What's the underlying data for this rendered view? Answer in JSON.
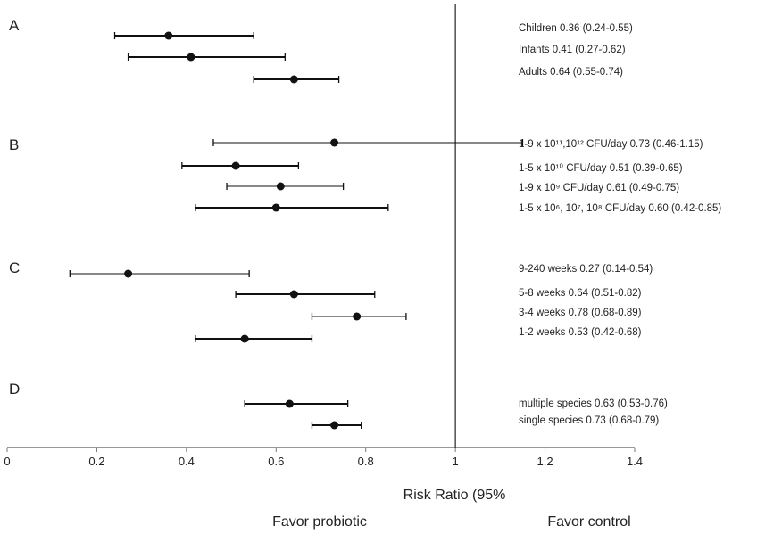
{
  "chart_data": {
    "type": "forest",
    "xlabel": "Risk Ratio (95%",
    "xlim": [
      0,
      1.4
    ],
    "xticks": [
      "0",
      "0.2",
      "0.4",
      "0.6",
      "0.8",
      "1",
      "1.2",
      "1.4"
    ],
    "reference_line": 1,
    "favor_left": "Favor probiotic",
    "favor_right": "Favor control",
    "groups": [
      {
        "name": "A",
        "rows": [
          {
            "label": "Children 0.36 (0.24-0.55)",
            "value": 0.36,
            "low": 0.24,
            "high": 0.55
          },
          {
            "label": "Infants 0.41 (0.27-0.62)",
            "value": 0.41,
            "low": 0.27,
            "high": 0.62
          },
          {
            "label": "Adults 0.64 (0.55-0.74)",
            "value": 0.64,
            "low": 0.55,
            "high": 0.74
          }
        ]
      },
      {
        "name": "B",
        "rows": [
          {
            "label": "1-9 x 10¹¹,10¹² CFU/day 0.73 (0.46-1.15)",
            "value": 0.73,
            "low": 0.46,
            "high": 1.15
          },
          {
            "label": "1-5 x 10¹⁰ CFU/day 0.51 (0.39-0.65)",
            "value": 0.51,
            "low": 0.39,
            "high": 0.65
          },
          {
            "label": "1-9 x 10⁹ CFU/day 0.61 (0.49-0.75)",
            "value": 0.61,
            "low": 0.49,
            "high": 0.75
          },
          {
            "label": "1-5 x 10⁶, 10⁷, 10⁸ CFU/day 0.60 (0.42-0.85)",
            "value": 0.6,
            "low": 0.42,
            "high": 0.85
          }
        ]
      },
      {
        "name": "C",
        "rows": [
          {
            "label": "9-240 weeks 0.27 (0.14-0.54)",
            "value": 0.27,
            "low": 0.14,
            "high": 0.54
          },
          {
            "label": "5-8 weeks  0.64 (0.51-0.82)",
            "value": 0.64,
            "low": 0.51,
            "high": 0.82
          },
          {
            "label": "3-4 weeks 0.78 (0.68-0.89)",
            "value": 0.78,
            "low": 0.68,
            "high": 0.89
          },
          {
            "label": "1-2 weeks 0.53 (0.42-0.68)",
            "value": 0.53,
            "low": 0.42,
            "high": 0.68
          }
        ]
      },
      {
        "name": "D",
        "rows": [
          {
            "label": "multiple species 0.63 (0.53-0.76)",
            "value": 0.63,
            "low": 0.53,
            "high": 0.76
          },
          {
            "label": "single species  0.73 (0.68-0.79)",
            "value": 0.73,
            "low": 0.68,
            "high": 0.79
          }
        ]
      }
    ]
  }
}
